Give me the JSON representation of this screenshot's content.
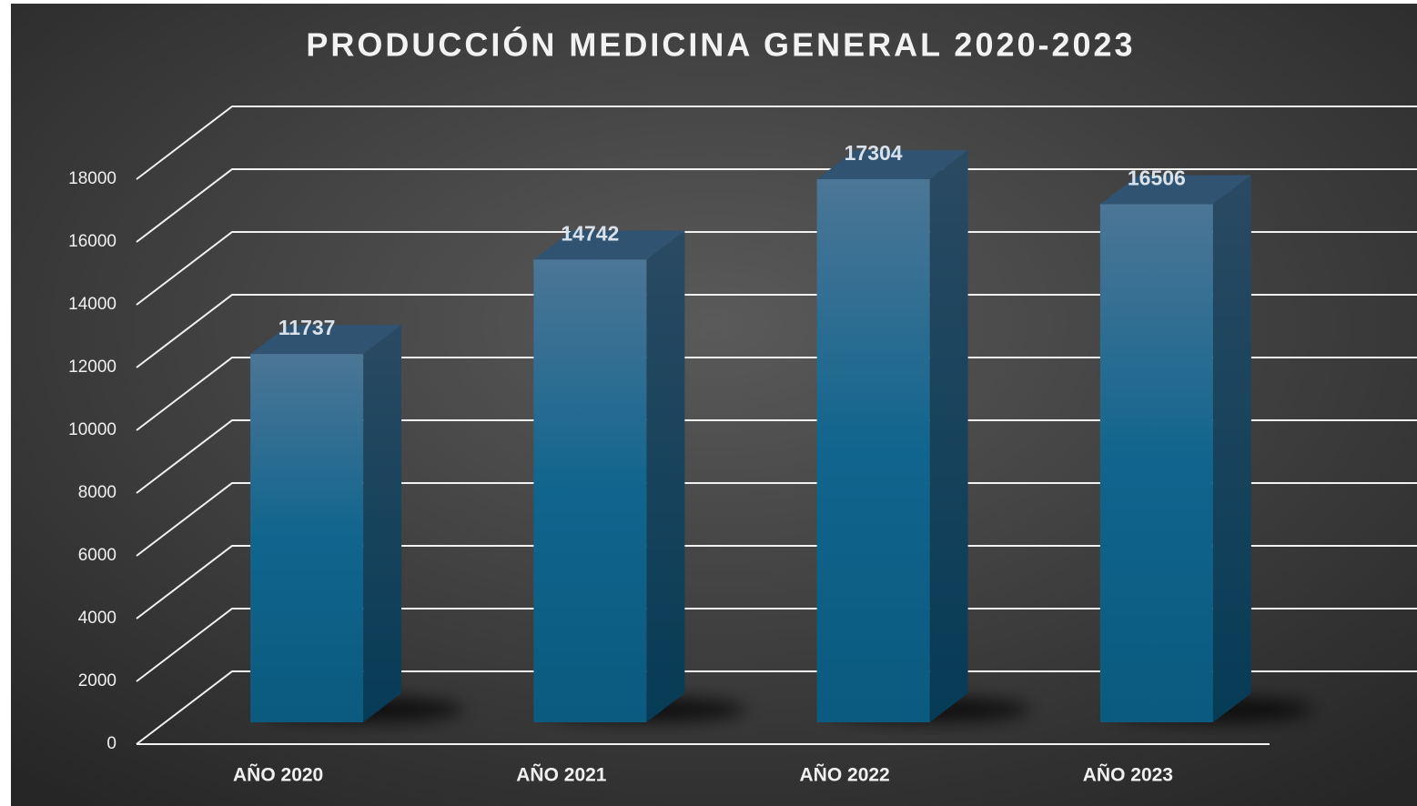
{
  "chart_data": {
    "type": "bar3d",
    "title": "PRODUCCIÓN MEDICINA GENERAL 2020-2023",
    "categories": [
      "AÑO 2020",
      "AÑO 2021",
      "AÑO 2022",
      "AÑO 2023"
    ],
    "values": [
      11737,
      14742,
      17304,
      16506
    ],
    "color": "#0f5f86",
    "ylim": [
      0,
      18000
    ],
    "yticks": [
      0,
      2000,
      4000,
      6000,
      8000,
      10000,
      12000,
      14000,
      16000,
      18000
    ],
    "grid": true
  }
}
